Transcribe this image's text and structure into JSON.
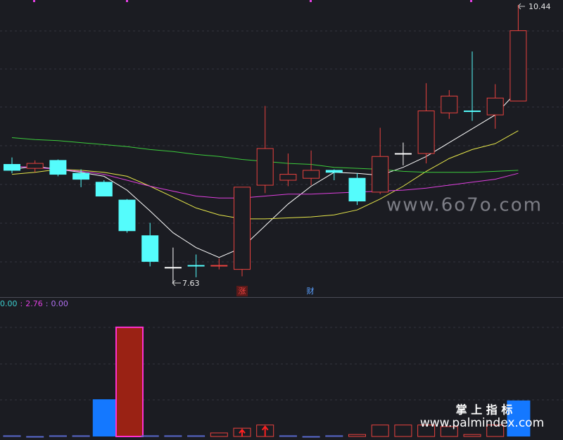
{
  "chart_data": {
    "type": "candlestick",
    "open": [
      8.83,
      8.79,
      8.87,
      8.74,
      8.65,
      8.47,
      8.11,
      7.79,
      7.81,
      7.81,
      7.77,
      8.62,
      8.67,
      8.69,
      8.77,
      8.69,
      8.55,
      8.94,
      8.94,
      9.35,
      9.37,
      9.33,
      9.47
    ],
    "high": [
      8.9,
      8.87,
      8.88,
      8.78,
      8.67,
      8.48,
      8.24,
      7.99,
      7.92,
      7.88,
      8.6,
      9.42,
      8.94,
      8.97,
      8.78,
      8.74,
      9.2,
      9.05,
      9.65,
      9.58,
      9.97,
      9.64,
      10.44
    ],
    "low": [
      8.74,
      8.75,
      8.71,
      8.6,
      8.51,
      8.14,
      7.8,
      7.63,
      7.69,
      7.77,
      7.7,
      8.54,
      8.61,
      8.62,
      8.67,
      8.42,
      8.53,
      8.82,
      8.84,
      9.29,
      9.27,
      9.19,
      9.47
    ],
    "close": [
      8.77,
      8.84,
      8.73,
      8.68,
      8.51,
      8.16,
      7.85,
      7.79,
      7.81,
      7.81,
      8.6,
      8.99,
      8.73,
      8.77,
      8.75,
      8.46,
      8.91,
      8.94,
      9.37,
      9.52,
      9.37,
      9.5,
      10.18
    ],
    "candle_colors": [
      "#54fcfc",
      "#e8423f",
      "#54fcfc",
      "#54fcfc",
      "#54fcfc",
      "#54fcfc",
      "#54fcfc",
      "#ffffff",
      "#54fcfc",
      "#e8423f",
      "#e8423f",
      "#e8423f",
      "#e8423f",
      "#e8423f",
      "#54fcfc",
      "#54fcfc",
      "#e8423f",
      "#ffffff",
      "#e8423f",
      "#e8423f",
      "#54fcfc",
      "#e8423f",
      "#e8423f"
    ],
    "ylim": [
      7.49,
      10.49
    ],
    "series": [
      {
        "color": "#ffffff",
        "values": [
          8.78,
          8.81,
          8.78,
          8.75,
          8.71,
          8.57,
          8.36,
          8.14,
          7.99,
          7.89,
          7.99,
          8.21,
          8.43,
          8.61,
          8.75,
          8.74,
          8.72,
          8.8,
          8.91,
          9.05,
          9.19,
          9.33,
          9.58
        ]
      },
      {
        "color": "#e6e64a",
        "values": [
          8.73,
          8.75,
          8.78,
          8.77,
          8.75,
          8.71,
          8.61,
          8.5,
          8.39,
          8.32,
          8.28,
          8.28,
          8.29,
          8.3,
          8.32,
          8.37,
          8.48,
          8.61,
          8.76,
          8.89,
          8.98,
          9.04,
          9.17
        ]
      },
      {
        "color": "#e040e0",
        "values": [
          8.81,
          8.8,
          8.78,
          8.76,
          8.73,
          8.67,
          8.61,
          8.56,
          8.51,
          8.49,
          8.49,
          8.51,
          8.53,
          8.53,
          8.54,
          8.55,
          8.56,
          8.57,
          8.59,
          8.62,
          8.65,
          8.68,
          8.74
        ]
      },
      {
        "color": "#3ccc3c",
        "values": [
          9.1,
          9.08,
          9.07,
          9.05,
          9.03,
          9.01,
          8.98,
          8.96,
          8.93,
          8.91,
          8.88,
          8.86,
          8.84,
          8.83,
          8.8,
          8.79,
          8.78,
          8.76,
          8.75,
          8.75,
          8.75,
          8.76,
          8.77
        ]
      }
    ],
    "annotations": [
      "涨",
      "财"
    ],
    "indicator": {
      "type": "bar",
      "values": [
        0.02,
        0,
        0.02,
        0.02,
        0.94,
        2.76,
        0.02,
        0.02,
        0.02,
        0.09,
        0.21,
        0.29,
        0.02,
        0,
        0.02,
        0.05,
        0.29,
        0.29,
        0.29,
        0.25,
        0.05,
        0.29,
        0.91
      ],
      "bar_styles": [
        "outline",
        "outline",
        "outline",
        "outline",
        "blue",
        "red",
        "outline",
        "outline",
        "outline",
        "outline",
        "outline-arrow",
        "outline-arrow",
        "outline",
        "outline",
        "outline",
        "outline",
        "outline",
        "outline",
        "outline",
        "outline",
        "outline",
        "outline",
        "blue"
      ],
      "ylim": [
        0,
        3.47
      ],
      "legend": [
        {
          "value": 0,
          "label": "0.00"
        },
        {
          "value": 2.76,
          "label": "2.76"
        },
        {
          "value": 0,
          "label": "0.00"
        }
      ],
      "legend_colors": [
        "#3ccfcf",
        "#e040e0",
        "#b070f0"
      ],
      "legend_separator": ":"
    },
    "watermarks": [
      "www.6o7o.com",
      "掌 上 指 标",
      "www.palmindex.com"
    ]
  }
}
